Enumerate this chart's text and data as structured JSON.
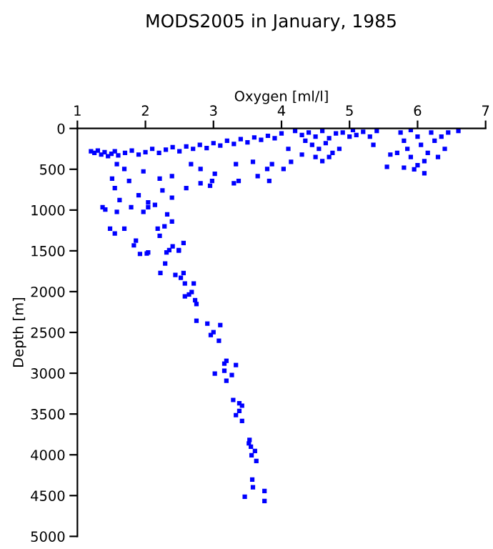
{
  "chart_data": {
    "type": "scatter",
    "title": "MODS2005 in January, 1985",
    "xlabel": "Oxygen [ml/l]",
    "ylabel": "Depth [m]",
    "xlim": [
      1,
      7
    ],
    "xticks": [
      1,
      2,
      3,
      4,
      5,
      6,
      7
    ],
    "ylim": [
      5000,
      0
    ],
    "yticks": [
      0,
      500,
      1000,
      1500,
      2000,
      2500,
      3000,
      3500,
      4000,
      4500,
      5000
    ],
    "grid": false,
    "marker": "square",
    "legend": false,
    "series": [
      {
        "color": "#0000ff",
        "x": [
          1.2,
          1.25,
          1.3,
          1.35,
          1.4,
          1.45,
          1.5,
          1.55,
          1.6,
          1.7,
          1.8,
          1.9,
          2.0,
          2.1,
          2.2,
          2.3,
          2.4,
          2.5,
          2.6,
          2.7,
          2.8,
          2.9,
          3.0,
          3.1,
          3.2,
          3.3,
          3.4,
          3.5,
          3.6,
          3.7,
          3.8,
          3.9,
          4.0,
          1.58,
          1.76,
          1.97,
          2.21,
          2.39,
          2.67,
          2.81,
          2.98,
          3.02,
          3.33,
          3.37,
          3.58,
          3.65,
          3.79,
          3.86,
          4.03,
          4.14,
          3.82,
          3.3,
          2.95,
          2.81,
          2.6,
          2.39,
          2.25,
          2.04,
          1.9,
          1.79,
          1.62,
          1.55,
          1.51,
          1.69,
          1.41,
          1.37,
          1.58,
          1.97,
          2.04,
          2.14,
          2.32,
          1.48,
          1.55,
          1.69,
          2.18,
          2.21,
          2.28,
          2.39,
          1.86,
          1.83,
          2.04,
          2.35,
          2.56,
          2.49,
          4.2,
          4.3,
          4.35,
          4.4,
          4.45,
          4.5,
          4.55,
          4.6,
          4.65,
          4.7,
          4.75,
          4.8,
          4.5,
          4.3,
          4.6,
          4.7,
          4.9,
          5.0,
          5.05,
          5.1,
          5.2,
          5.3,
          5.4,
          5.35,
          4.85,
          4.1,
          5.55,
          5.6,
          5.75,
          5.8,
          5.85,
          5.9,
          5.95,
          6.0,
          6.05,
          6.1,
          6.15,
          6.2,
          6.25,
          6.3,
          6.1,
          5.8,
          5.7,
          6.35,
          6.45,
          6.6,
          6.4,
          5.9,
          6.0,
          1.92,
          2.02,
          2.31,
          2.49,
          2.4,
          2.29,
          2.22,
          2.44,
          2.56,
          2.52,
          2.58,
          2.71,
          2.68,
          2.58,
          2.64,
          2.73,
          2.75,
          2.75,
          2.91,
          3.1,
          3.0,
          2.96,
          3.08,
          3.19,
          3.16,
          3.33,
          3.16,
          3.02,
          3.27,
          3.19,
          3.29,
          3.38,
          3.42,
          3.38,
          3.33,
          3.42,
          3.53,
          3.52,
          3.55,
          3.61,
          3.56,
          3.63,
          3.57,
          3.58,
          3.75,
          3.46,
          3.75
        ],
        "values": [
          280,
          300,
          270,
          320,
          290,
          340,
          310,
          280,
          330,
          300,
          270,
          320,
          290,
          250,
          300,
          260,
          230,
          280,
          220,
          250,
          200,
          240,
          180,
          210,
          150,
          190,
          130,
          170,
          110,
          140,
          90,
          120,
          60,
          438,
          643,
          526,
          614,
          585,
          438,
          497,
          643,
          556,
          438,
          643,
          409,
          585,
          497,
          438,
          497,
          409,
          643,
          672,
          702,
          672,
          731,
          848,
          760,
          906,
          819,
          965,
          877,
          731,
          614,
          497,
          994,
          965,
          1023,
          1023,
          965,
          936,
          1053,
          1228,
          1287,
          1228,
          1228,
          1316,
          1199,
          1140,
          1374,
          1433,
          1520,
          1491,
          1404,
          1491,
          30,
          80,
          150,
          50,
          200,
          100,
          250,
          30,
          180,
          120,
          300,
          60,
          350,
          320,
          400,
          350,
          50,
          100,
          20,
          80,
          40,
          100,
          30,
          200,
          250,
          250,
          470,
          320,
          50,
          150,
          250,
          350,
          500,
          100,
          200,
          400,
          300,
          50,
          150,
          350,
          550,
          480,
          300,
          100,
          50,
          30,
          250,
          20,
          450,
          1538,
          1532,
          1520,
          1497,
          1445,
          1655,
          1772,
          1795,
          1772,
          1830,
          1900,
          1900,
          2005,
          2058,
          2035,
          2105,
          2152,
          2357,
          2392,
          2410,
          2497,
          2532,
          2602,
          2848,
          2883,
          2900,
          2970,
          3005,
          3023,
          3093,
          3328,
          3368,
          3398,
          3462,
          3514,
          3585,
          3818,
          3860,
          3900,
          3953,
          4005,
          4075,
          4304,
          4398,
          4444,
          4514,
          4567
        ]
      }
    ]
  }
}
